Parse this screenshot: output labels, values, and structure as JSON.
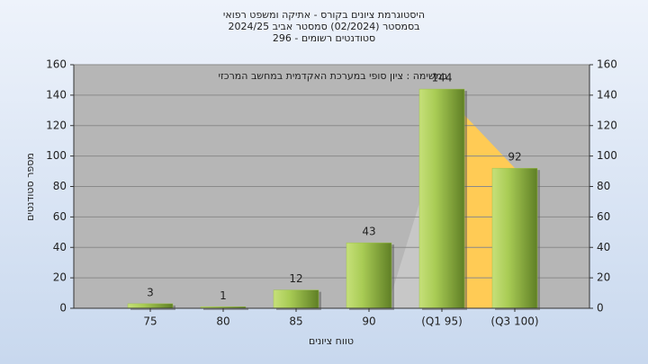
{
  "chart_data": {
    "type": "bar",
    "title": "היסטוגרמת ציונים בקורס - אתיקה ומשפט רפואי",
    "subtitle": "בסמסטר  (02/2024)  סמסטר אביב  2024/25",
    "subtitle2": "סטודנטים רשומים - 296",
    "annotation": "במשימה : ציון סופי במערכת האקדמית במחשב המרכזי",
    "x_label": "טווח ציונים",
    "y_label": "מספר סטודנטים",
    "categories": [
      "75",
      "80",
      "85",
      "90",
      "(Q1 95)",
      "(Q3 100)"
    ],
    "values": [
      3,
      1,
      12,
      43,
      144,
      92
    ],
    "color": "#9dc24a",
    "ylim": [
      0,
      160
    ],
    "yticks": [
      0,
      20,
      40,
      60,
      80,
      100,
      120,
      140,
      160
    ],
    "y2lim": [
      0,
      160
    ],
    "y2ticks": [
      0,
      20,
      40,
      60,
      80,
      100,
      120,
      140,
      160
    ],
    "grid": true
  }
}
